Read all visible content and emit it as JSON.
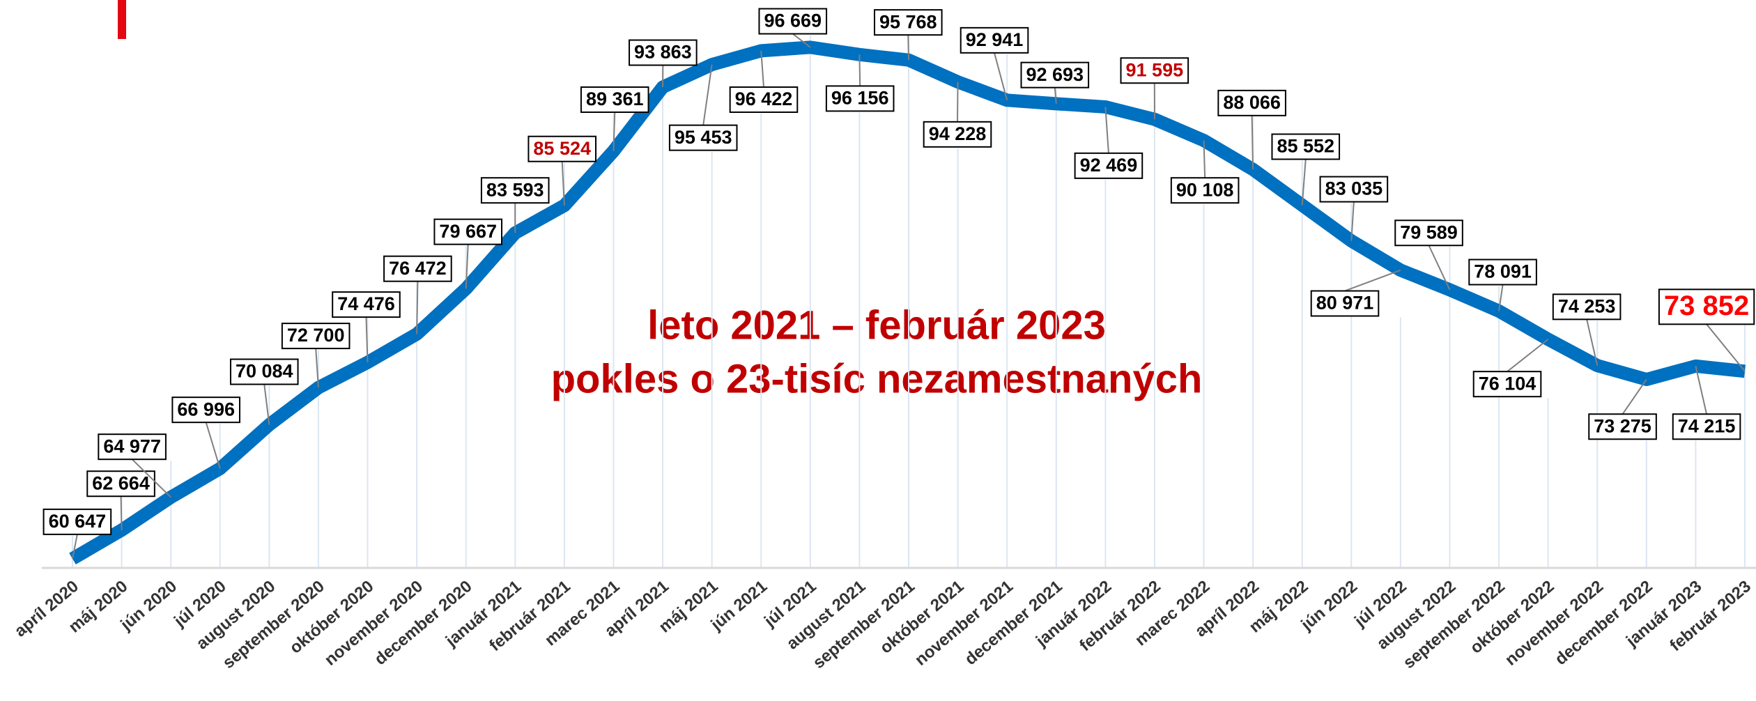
{
  "chart_data": {
    "type": "line",
    "annotation": [
      "leto 2021 – február 2023",
      "pokles o 23-tisíc nezamestnaných"
    ],
    "categories": [
      "apríl 2020",
      "máj 2020",
      "jún 2020",
      "júl 2020",
      "august 2020",
      "september 2020",
      "október 2020",
      "november 2020",
      "december 2020",
      "január 2021",
      "február 2021",
      "marec 2021",
      "apríl 2021",
      "máj 2021",
      "jún 2021",
      "júl 2021",
      "august 2021",
      "september 2021",
      "október 2021",
      "november 2021",
      "december 2021",
      "január 2022",
      "február 2022",
      "marec 2022",
      "apríl 2022",
      "máj 2022",
      "jún 2022",
      "júl 2022",
      "august 2022",
      "september 2022",
      "október 2022",
      "november 2022",
      "december 2022",
      "január 2023",
      "február 2023"
    ],
    "series": [
      {
        "color": "#0070c0",
        "values": [
          60647,
          62664,
          64977,
          66996,
          70084,
          72700,
          74476,
          76472,
          79667,
          83593,
          85524,
          89361,
          93863,
          95453,
          96422,
          96669,
          96156,
          95768,
          94228,
          92941,
          92693,
          92469,
          91595,
          90108,
          88066,
          85552,
          83035,
          80971,
          79589,
          78091,
          76104,
          74253,
          73275,
          74215,
          73852
        ],
        "value_labels": [
          "60 647",
          "62 664",
          "64 977",
          "66 996",
          "70 084",
          "72 700",
          "74 476",
          "76 472",
          "79 667",
          "83 593",
          "85 524",
          "89 361",
          "93 863",
          "95 453",
          "96 422",
          "96 669",
          "96 156",
          "95 768",
          "94 228",
          "92 941",
          "92 693",
          "92 469",
          "91 595",
          "90 108",
          "88 066",
          "85 552",
          "83 035",
          "80 971",
          "79 589",
          "78 091",
          "76 104",
          "74 253",
          "73 275",
          "74 215",
          "73 852"
        ],
        "value_label_colors": [
          "#000",
          "#000",
          "#000",
          "#000",
          "#000",
          "#000",
          "#000",
          "#000",
          "#000",
          "#000",
          "#c00000",
          "#000",
          "#000",
          "#000",
          "#000",
          "#000",
          "#000",
          "#000",
          "#000",
          "#000",
          "#000",
          "#000",
          "#c00000",
          "#000",
          "#000",
          "#000",
          "#000",
          "#000",
          "#000",
          "#000",
          "#000",
          "#000",
          "#000",
          "#000",
          "#ff0000"
        ]
      }
    ],
    "ylim": [
      60000,
      100000
    ]
  }
}
